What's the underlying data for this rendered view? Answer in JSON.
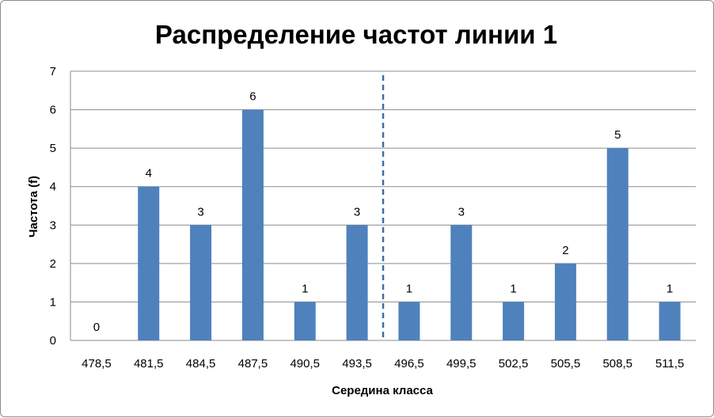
{
  "chart_data": {
    "type": "bar",
    "title": "Распределение частот линии 1",
    "xlabel": "Середина класса",
    "ylabel": "Частота (f)",
    "categories": [
      "478,5",
      "481,5",
      "484,5",
      "487,5",
      "490,5",
      "493,5",
      "496,5",
      "499,5",
      "502,5",
      "505,5",
      "508,5",
      "511,5"
    ],
    "values": [
      0,
      4,
      3,
      6,
      1,
      3,
      1,
      3,
      1,
      2,
      5,
      1
    ],
    "data_labels": [
      "0",
      "4",
      "3",
      "6",
      "1",
      "3",
      "1",
      "3",
      "1",
      "2",
      "5",
      "1"
    ],
    "ylim": [
      0,
      7
    ],
    "yticks": [
      "0",
      "1",
      "2",
      "3",
      "4",
      "5",
      "6",
      "7"
    ],
    "grid": "horizontal",
    "legend": "none",
    "divider": {
      "style": "dashed",
      "between_categories": [
        "493,5",
        "496,5"
      ]
    },
    "bar_color": "#4f81bd",
    "divider_color": "#3e6fa8",
    "gridline_color": "#8c8c8c"
  }
}
